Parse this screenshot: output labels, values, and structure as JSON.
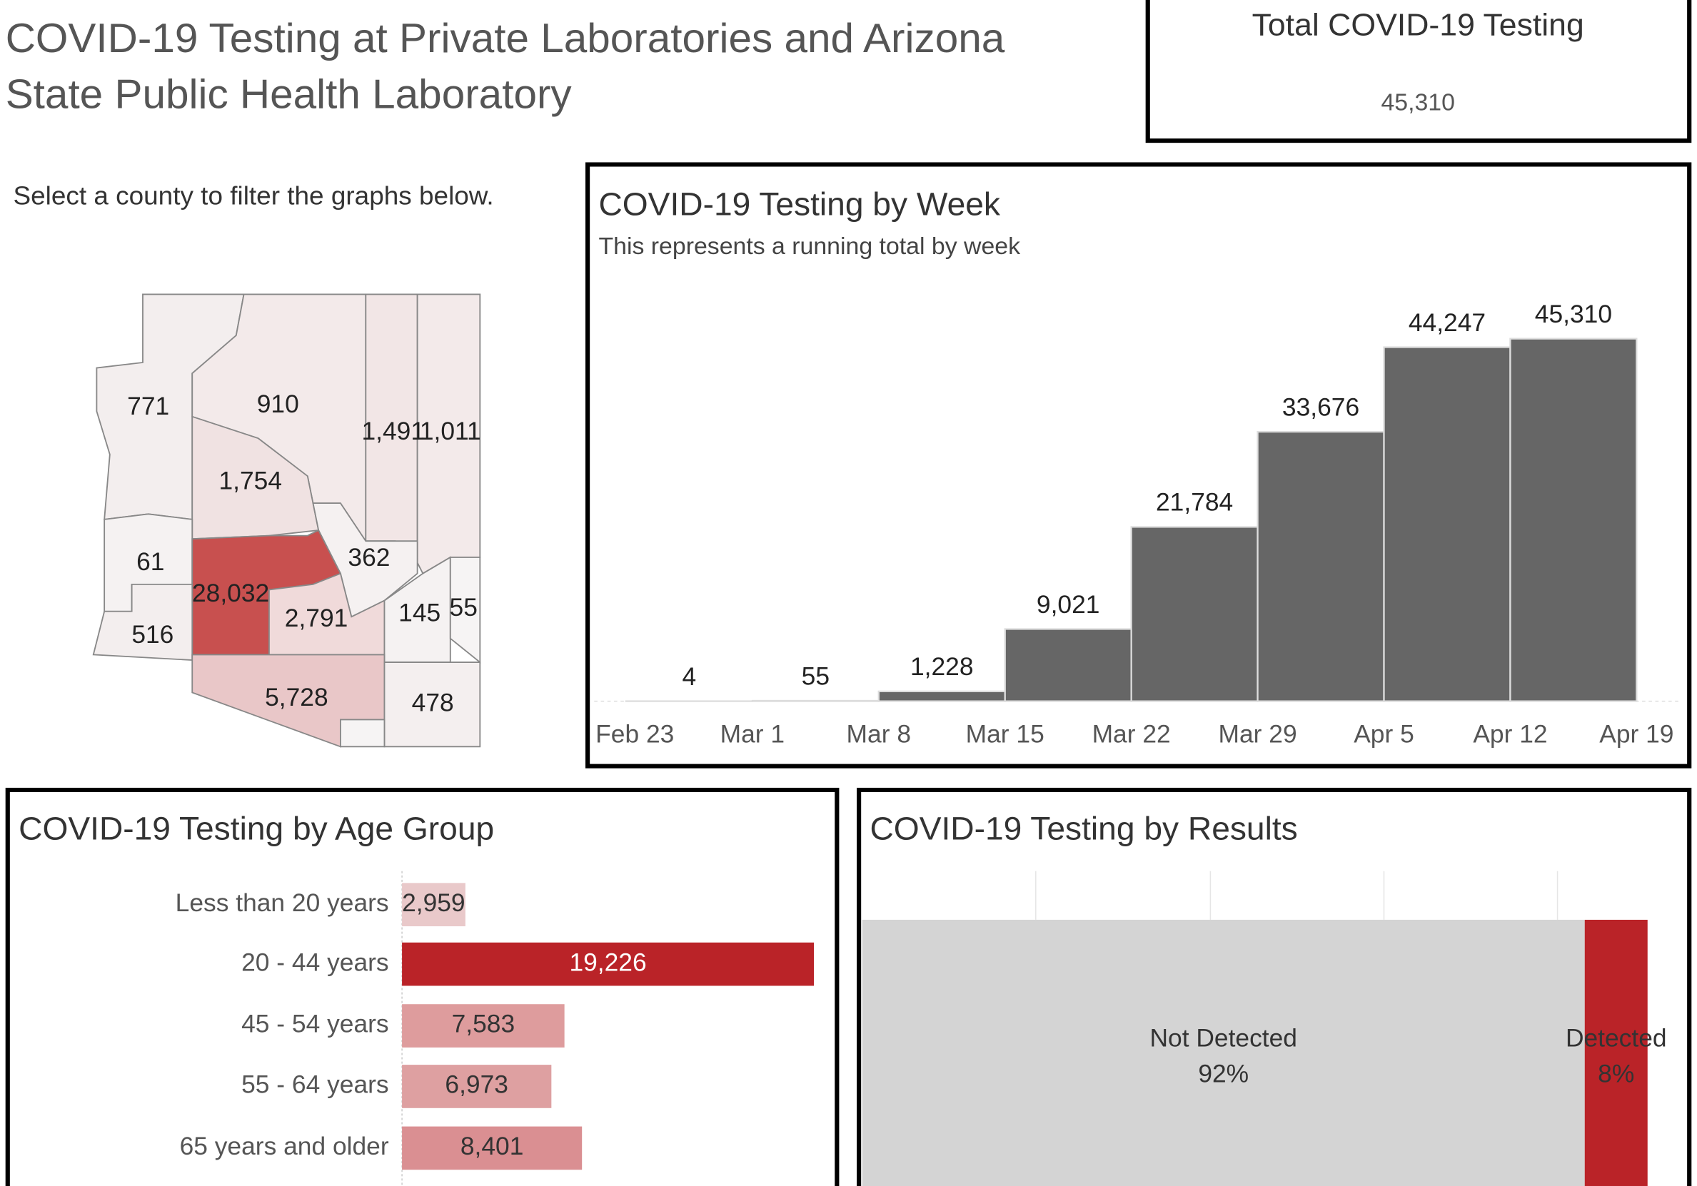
{
  "title": "COVID-19 Testing at Private Laboratories and Arizona State Public Health Laboratory",
  "kpi": {
    "title": "Total COVID-19 Testing",
    "value": 45310,
    "value_label": "45,310"
  },
  "chart_data": [
    {
      "type": "map",
      "instruction": "Select a county to filter the graphs below.",
      "values": [
        771,
        910,
        1491,
        1011,
        1754,
        61,
        362,
        28032,
        2791,
        145,
        55,
        516,
        5728,
        478
      ],
      "value_labels": [
        "771",
        "910",
        "1,491",
        "1,011",
        "1,754",
        "61",
        "362",
        "28,032",
        "2,791",
        "145",
        "55",
        "516",
        "5,728",
        "478"
      ]
    },
    {
      "type": "histogram",
      "title": "COVID-19 Testing by Week",
      "subtitle": "This represents a running total by week",
      "bins": [
        "Feb 23",
        "Mar 1",
        "Mar 8",
        "Mar 15",
        "Mar 22",
        "Mar 29",
        "Apr 5",
        "Apr 12",
        "Apr 19"
      ],
      "values": [
        4,
        55,
        1228,
        9021,
        21784,
        33676,
        44247,
        45310
      ],
      "value_labels": [
        "4",
        "55",
        "1,228",
        "9,021",
        "21,784",
        "33,676",
        "44,247",
        "45,310"
      ],
      "color": "#666666"
    },
    {
      "type": "hbar",
      "title": "COVID-19 Testing by Age Group",
      "categories": [
        "Less than 20 years",
        "20 - 44 years",
        "45 - 54 years",
        "55 - 64 years",
        "65 years and older"
      ],
      "values": [
        2959,
        19226,
        7583,
        6973,
        8401
      ],
      "value_labels": [
        "2,959",
        "19,226",
        "7,583",
        "6,973",
        "8,401"
      ],
      "colors": [
        "#e9c9ca",
        "#ba2328",
        "#de9c9d",
        "#dea0a1",
        "#da8f92"
      ]
    },
    {
      "type": "stacked-hbar",
      "title": "COVID-19 Testing by Results",
      "categories": [
        "Not Detected",
        "Detected"
      ],
      "values": [
        92,
        8
      ],
      "value_labels": [
        "92%",
        "8%"
      ],
      "colors": [
        "#d4d4d4",
        "#ba2328"
      ]
    }
  ]
}
